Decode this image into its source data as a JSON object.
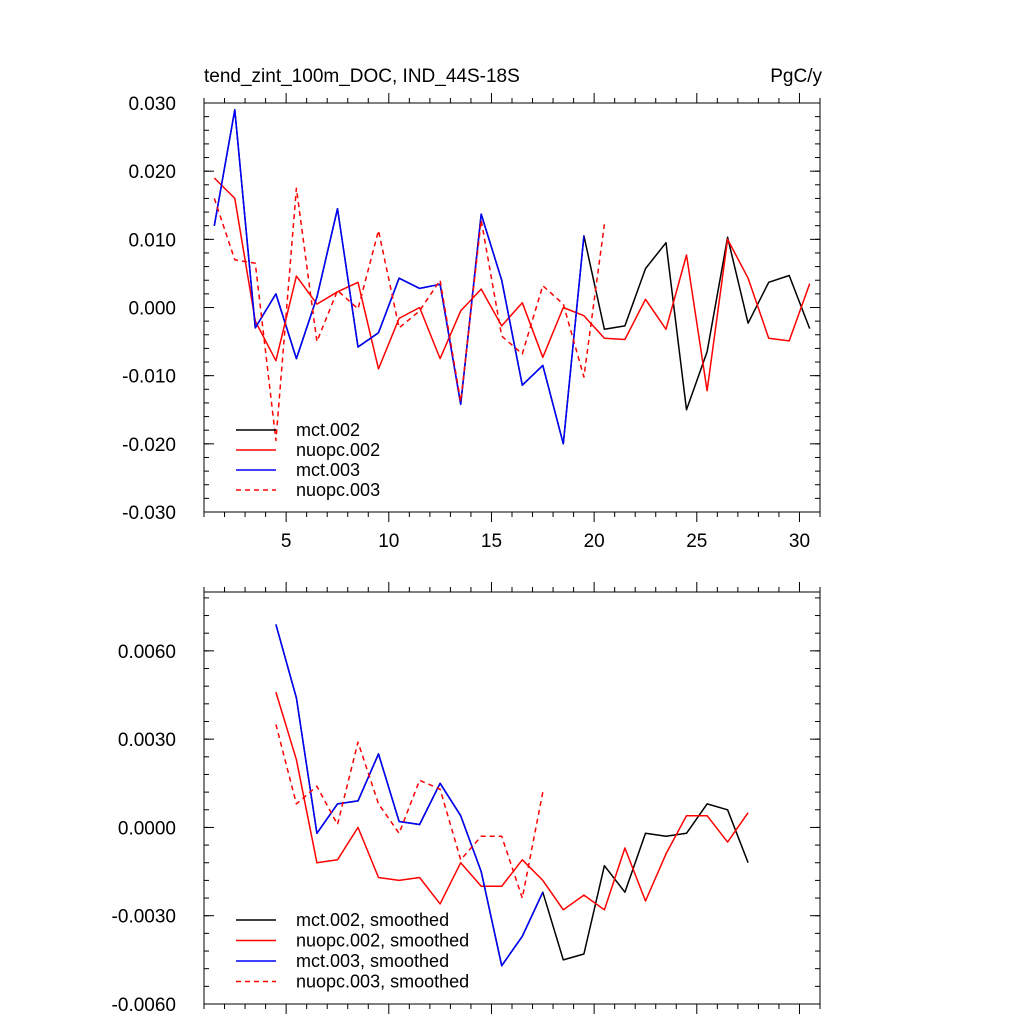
{
  "chart_data": [
    {
      "type": "line",
      "title": "tend_zint_100m_DOC, IND_44S-18S",
      "units": "PgC/y",
      "xlabel": "",
      "ylabel": "",
      "xlim": [
        1,
        31
      ],
      "ylim": [
        -0.03,
        0.03
      ],
      "x_ticks": [
        5,
        10,
        15,
        20,
        25,
        30
      ],
      "x_tick_labels": [
        "5",
        "10",
        "15",
        "20",
        "25",
        "30"
      ],
      "y_ticks": [
        -0.03,
        -0.02,
        -0.01,
        0.0,
        0.01,
        0.02,
        0.03
      ],
      "y_tick_labels": [
        "-0.030",
        "-0.020",
        "-0.010",
        "0.000",
        "0.010",
        "0.020",
        "0.030"
      ],
      "legend_position": "bottom-left",
      "series": [
        {
          "name": "mct.002",
          "color": "#000000",
          "dash": "solid",
          "x": [
            1.5,
            2.5,
            3.5,
            4.5,
            5.5,
            6.5,
            7.5,
            8.5,
            9.5,
            10.5,
            11.5,
            12.5,
            13.5,
            14.5,
            15.5,
            16.5,
            17.5,
            18.5,
            19.5,
            20.5,
            21.5,
            22.5,
            23.5,
            24.5,
            25.5,
            26.5,
            27.5,
            28.5,
            29.5,
            30.5
          ],
          "values": [
            0.012,
            0.029,
            -0.003,
            0.002,
            -0.0075,
            0.0015,
            0.0145,
            -0.0058,
            -0.0037,
            0.0043,
            0.0028,
            0.0034,
            -0.0142,
            0.0137,
            0.004,
            -0.0114,
            -0.0085,
            -0.02,
            0.0105,
            -0.0032,
            -0.0027,
            0.0057,
            0.0095,
            -0.015,
            -0.0065,
            0.0103,
            -0.0023,
            0.0037,
            0.0047,
            -0.0031
          ]
        },
        {
          "name": "nuopc.002",
          "color": "#ff0000",
          "dash": "solid",
          "x": [
            1.5,
            2.5,
            3.5,
            4.5,
            5.5,
            6.5,
            7.5,
            8.5,
            9.5,
            10.5,
            11.5,
            12.5,
            13.5,
            14.5,
            15.5,
            16.5,
            17.5,
            18.5,
            19.5,
            20.5,
            21.5,
            22.5,
            23.5,
            24.5,
            25.5,
            26.5,
            27.5,
            28.5,
            29.5,
            30.5
          ],
          "values": [
            0.019,
            0.016,
            -0.002,
            -0.0078,
            0.0046,
            0.0005,
            0.0023,
            0.0037,
            -0.009,
            -0.0016,
            0.0,
            -0.0075,
            -0.0005,
            0.0027,
            -0.0027,
            0.0007,
            -0.0073,
            0.0,
            -0.0012,
            -0.0045,
            -0.0047,
            0.0012,
            -0.0032,
            0.0077,
            -0.0122,
            0.01,
            0.0043,
            -0.0045,
            -0.0049,
            0.0035
          ]
        },
        {
          "name": "mct.003",
          "color": "#0000ff",
          "dash": "solid",
          "x": [
            1.5,
            2.5,
            3.5,
            4.5,
            5.5,
            6.5,
            7.5,
            8.5,
            9.5,
            10.5,
            11.5,
            12.5,
            13.5,
            14.5,
            15.5,
            16.5,
            17.5,
            18.5,
            19.5
          ],
          "values": [
            0.012,
            0.029,
            -0.003,
            0.002,
            -0.0075,
            0.0015,
            0.0145,
            -0.0058,
            -0.0037,
            0.0043,
            0.0028,
            0.0034,
            -0.0142,
            0.0137,
            0.004,
            -0.0114,
            -0.0085,
            -0.02,
            0.0105
          ]
        },
        {
          "name": "nuopc.003",
          "color": "#ff0000",
          "dash": "dashed",
          "x": [
            1.5,
            2.5,
            3.5,
            4.5,
            5.5,
            6.5,
            7.5,
            8.5,
            9.5,
            10.5,
            11.5,
            12.5,
            13.5,
            14.5,
            15.5,
            16.5,
            17.5,
            18.5,
            19.5,
            20.5
          ],
          "values": [
            0.016,
            0.007,
            0.0065,
            -0.0195,
            0.0175,
            -0.005,
            0.0025,
            -0.0002,
            0.0113,
            -0.003,
            -0.0005,
            0.004,
            -0.0138,
            0.0128,
            -0.0042,
            -0.0068,
            0.0032,
            0.0005,
            -0.0102,
            0.0122
          ]
        }
      ]
    },
    {
      "type": "line",
      "title": "",
      "xlabel": "",
      "ylabel": "",
      "xlim": [
        1,
        31
      ],
      "ylim": [
        -0.006,
        0.008
      ],
      "x_ticks": [
        5,
        10,
        15,
        20,
        25,
        30
      ],
      "x_tick_labels": [],
      "y_ticks": [
        -0.006,
        -0.003,
        0.0,
        0.003,
        0.006
      ],
      "y_tick_labels": [
        "-0.0060",
        "-0.0030",
        "0.0000",
        "0.0030",
        "0.0060"
      ],
      "legend_position": "bottom-left",
      "series": [
        {
          "name": "mct.002, smoothed",
          "color": "#000000",
          "dash": "solid",
          "x": [
            4.5,
            5.5,
            6.5,
            7.5,
            8.5,
            9.5,
            10.5,
            11.5,
            12.5,
            13.5,
            14.5,
            15.5,
            16.5,
            17.5,
            18.5,
            19.5,
            20.5,
            21.5,
            22.5,
            23.5,
            24.5,
            25.5,
            26.5,
            27.5
          ],
          "values": [
            0.0069,
            0.0044,
            -0.0002,
            0.0008,
            0.0009,
            0.0025,
            0.0002,
            0.0001,
            0.0015,
            0.0004,
            -0.0015,
            -0.0047,
            -0.0037,
            -0.0022,
            -0.0045,
            -0.0043,
            -0.0013,
            -0.0022,
            -0.0002,
            -0.0003,
            -0.0002,
            0.0008,
            0.0006,
            -0.0012
          ]
        },
        {
          "name": "nuopc.002, smoothed",
          "color": "#ff0000",
          "dash": "solid",
          "x": [
            4.5,
            5.5,
            6.5,
            7.5,
            8.5,
            9.5,
            10.5,
            11.5,
            12.5,
            13.5,
            14.5,
            15.5,
            16.5,
            17.5,
            18.5,
            19.5,
            20.5,
            21.5,
            22.5,
            23.5,
            24.5,
            25.5,
            26.5,
            27.5
          ],
          "values": [
            0.0046,
            0.0023,
            -0.0012,
            -0.0011,
            0.0,
            -0.0017,
            -0.0018,
            -0.0017,
            -0.0026,
            -0.0012,
            -0.002,
            -0.002,
            -0.0011,
            -0.0018,
            -0.0028,
            -0.0023,
            -0.0028,
            -0.0007,
            -0.0025,
            -0.0009,
            0.0004,
            0.0004,
            -0.0005,
            0.0005
          ]
        },
        {
          "name": "mct.003, smoothed",
          "color": "#0000ff",
          "dash": "solid",
          "x": [
            4.5,
            5.5,
            6.5,
            7.5,
            8.5,
            9.5,
            10.5,
            11.5,
            12.5,
            13.5,
            14.5,
            15.5,
            16.5,
            17.5
          ],
          "values": [
            0.0069,
            0.0044,
            -0.0002,
            0.0008,
            0.0009,
            0.0025,
            0.0002,
            0.0001,
            0.0015,
            0.0004,
            -0.0015,
            -0.0047,
            -0.0037,
            -0.0022
          ]
        },
        {
          "name": "nuopc.003, smoothed",
          "color": "#ff0000",
          "dash": "dashed",
          "x": [
            4.5,
            5.5,
            6.5,
            7.5,
            8.5,
            9.5,
            10.5,
            11.5,
            12.5,
            13.5,
            14.5,
            15.5,
            16.5,
            17.5
          ],
          "values": [
            0.0035,
            0.0008,
            0.0014,
            0.0001,
            0.0029,
            0.0008,
            -0.0002,
            0.0016,
            0.0013,
            -0.0011,
            -0.0003,
            -0.0003,
            -0.0024,
            0.0012
          ]
        }
      ]
    }
  ]
}
